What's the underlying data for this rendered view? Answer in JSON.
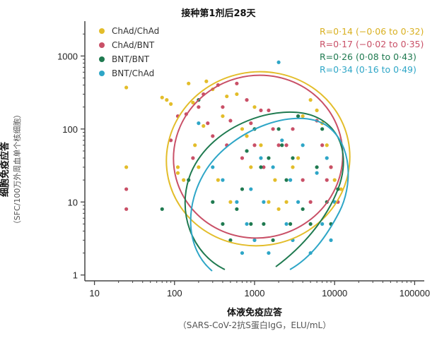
{
  "chart_data": {
    "type": "scatter",
    "title": "接种第1剂后28天",
    "xlabel": "体液免疫应答",
    "xlabel_sub": "（SARS-CoV-2抗S蛋白IgG，ELU/mL）",
    "ylabel": "细胞免疫应答",
    "ylabel_sub": "（SFC/100万外周血单个核细胞）",
    "x_scale": "log",
    "y_scale": "log",
    "xlim": [
      10,
      100000
    ],
    "ylim": [
      1,
      3000
    ],
    "x_ticks": [
      "10",
      "100",
      "1000",
      "10000",
      "100000"
    ],
    "y_ticks": [
      "1",
      "10",
      "100",
      "1000"
    ],
    "legend": [
      {
        "name": "ChAd/ChAd",
        "color": "#e3bd2a"
      },
      {
        "name": "ChAd/BNT",
        "color": "#c95067"
      },
      {
        "name": "BNT/BNT",
        "color": "#1f7a50"
      },
      {
        "name": "BNT/ChAd",
        "color": "#2ea6c7"
      }
    ],
    "correlations": [
      {
        "text": "R=0·14 (−0·06 to 0·32)",
        "color": "#d9b020"
      },
      {
        "text": "R=0·17 (−0·02 to 0·35)",
        "color": "#c95067"
      },
      {
        "text": "R=0·26 (0·08 to 0·43)",
        "color": "#1f7a50"
      },
      {
        "text": "R=0·34 (0·16 to 0·49)",
        "color": "#2ea6c7"
      }
    ],
    "series": [
      {
        "name": "ChAd/ChAd",
        "color": "#e3bd2a",
        "points": [
          [
            25,
            370
          ],
          [
            25,
            30
          ],
          [
            70,
            270
          ],
          [
            80,
            250
          ],
          [
            90,
            220
          ],
          [
            110,
            30
          ],
          [
            110,
            25
          ],
          [
            130,
            20
          ],
          [
            150,
            420
          ],
          [
            170,
            230
          ],
          [
            180,
            60
          ],
          [
            200,
            30
          ],
          [
            230,
            110
          ],
          [
            250,
            450
          ],
          [
            300,
            350
          ],
          [
            350,
            20
          ],
          [
            400,
            150
          ],
          [
            450,
            280
          ],
          [
            500,
            10
          ],
          [
            600,
            300
          ],
          [
            700,
            100
          ],
          [
            800,
            80
          ],
          [
            900,
            30
          ],
          [
            1000,
            200
          ],
          [
            1200,
            60
          ],
          [
            1500,
            10
          ],
          [
            1800,
            20
          ],
          [
            2000,
            8
          ],
          [
            2500,
            10
          ],
          [
            3000,
            30
          ],
          [
            3500,
            40
          ],
          [
            4000,
            150
          ],
          [
            5000,
            250
          ],
          [
            6000,
            180
          ],
          [
            7000,
            120
          ],
          [
            8000,
            60
          ],
          [
            9000,
            30
          ],
          [
            10000,
            20
          ],
          [
            12000,
            15
          ]
        ]
      },
      {
        "name": "ChAd/BNT",
        "color": "#c95067",
        "points": [
          [
            25,
            8
          ],
          [
            25,
            15
          ],
          [
            90,
            70
          ],
          [
            110,
            150
          ],
          [
            140,
            160
          ],
          [
            170,
            40
          ],
          [
            200,
            200
          ],
          [
            230,
            300
          ],
          [
            260,
            120
          ],
          [
            300,
            80
          ],
          [
            350,
            400
          ],
          [
            400,
            200
          ],
          [
            450,
            60
          ],
          [
            500,
            130
          ],
          [
            600,
            420
          ],
          [
            700,
            40
          ],
          [
            800,
            250
          ],
          [
            900,
            120
          ],
          [
            1000,
            60
          ],
          [
            1200,
            180
          ],
          [
            1300,
            30
          ],
          [
            1500,
            180
          ],
          [
            1700,
            100
          ],
          [
            2000,
            60
          ],
          [
            2500,
            60
          ],
          [
            3000,
            100
          ],
          [
            3500,
            150
          ],
          [
            4000,
            20
          ],
          [
            5000,
            10
          ],
          [
            6000,
            130
          ],
          [
            7000,
            60
          ],
          [
            8000,
            20
          ],
          [
            9000,
            30
          ],
          [
            11000,
            10
          ]
        ]
      },
      {
        "name": "BNT/BNT",
        "color": "#1f7a50",
        "points": [
          [
            70,
            8
          ],
          [
            150,
            20
          ],
          [
            200,
            250
          ],
          [
            300,
            10
          ],
          [
            400,
            5
          ],
          [
            500,
            3
          ],
          [
            600,
            8
          ],
          [
            700,
            15
          ],
          [
            800,
            50
          ],
          [
            900,
            5
          ],
          [
            1000,
            100
          ],
          [
            1200,
            30
          ],
          [
            1300,
            5
          ],
          [
            1500,
            40
          ],
          [
            1700,
            3
          ],
          [
            2000,
            100
          ],
          [
            2200,
            60
          ],
          [
            2500,
            20
          ],
          [
            2800,
            5
          ],
          [
            3000,
            40
          ],
          [
            3500,
            150
          ],
          [
            4000,
            8
          ],
          [
            5000,
            5
          ],
          [
            6000,
            30
          ],
          [
            7000,
            100
          ],
          [
            8000,
            10
          ],
          [
            9000,
            5
          ],
          [
            11000,
            15
          ]
        ]
      },
      {
        "name": "BNT/ChAd",
        "color": "#2ea6c7",
        "points": [
          [
            200,
            120
          ],
          [
            300,
            30
          ],
          [
            400,
            20
          ],
          [
            600,
            10
          ],
          [
            700,
            2
          ],
          [
            800,
            5
          ],
          [
            900,
            15
          ],
          [
            1000,
            3
          ],
          [
            1200,
            40
          ],
          [
            1300,
            10
          ],
          [
            1500,
            2
          ],
          [
            1700,
            30
          ],
          [
            2000,
            820
          ],
          [
            2200,
            70
          ],
          [
            2500,
            5
          ],
          [
            2800,
            20
          ],
          [
            3000,
            3
          ],
          [
            3500,
            10
          ],
          [
            4000,
            60
          ],
          [
            5000,
            2
          ],
          [
            6000,
            25
          ],
          [
            7000,
            5
          ],
          [
            8000,
            40
          ],
          [
            9000,
            3
          ],
          [
            10000,
            10
          ]
        ]
      }
    ],
    "ellipses": [
      {
        "color": "#e3bd2a",
        "type": "closed"
      },
      {
        "color": "#c95067",
        "type": "closed"
      },
      {
        "color": "#1f7a50",
        "type": "open"
      },
      {
        "color": "#2ea6c7",
        "type": "open"
      }
    ]
  }
}
